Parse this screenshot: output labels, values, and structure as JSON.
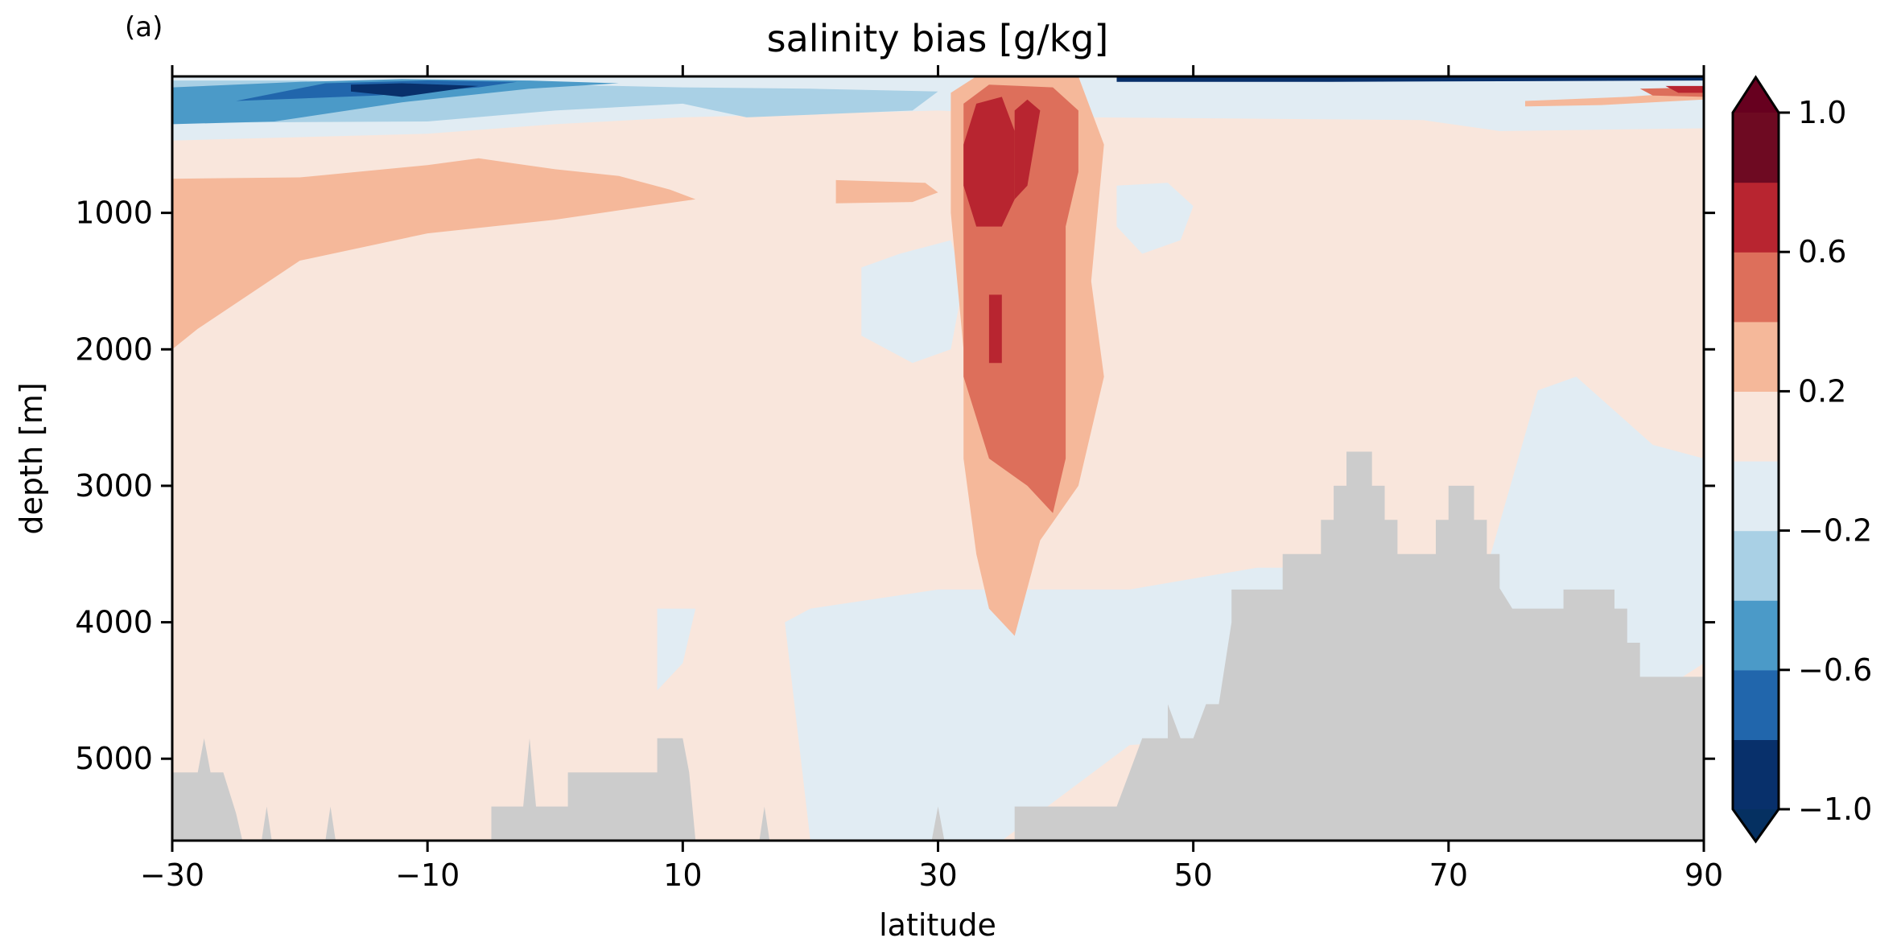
{
  "panel_label": "(a)",
  "chart_data": {
    "type": "heatmap",
    "subtype": "filled-contour",
    "title": "salinity bias [g/kg]",
    "xlabel": "latitude",
    "ylabel": "depth [m]",
    "xlim": [
      -30,
      90
    ],
    "ylim": [
      5600,
      0
    ],
    "y_inverted": true,
    "x_ticks": [
      -30,
      -10,
      10,
      30,
      50,
      70,
      90
    ],
    "x_tick_labels": [
      "−30",
      "−10",
      "10",
      "30",
      "50",
      "70",
      "90"
    ],
    "y_ticks": [
      1000,
      2000,
      3000,
      4000,
      5000
    ],
    "y_tick_labels": [
      "1000",
      "2000",
      "3000",
      "4000",
      "5000"
    ],
    "grid": false,
    "colorbar": {
      "levels": [
        -1.0,
        -0.8,
        -0.6,
        -0.4,
        -0.2,
        0.0,
        0.2,
        0.4,
        0.6,
        0.8,
        1.0
      ],
      "extend": "both",
      "colors": [
        "#053061",
        "#2166ac",
        "#4393c3",
        "#92c5de",
        "#d1e5f0",
        "#fddbc7",
        "#f4a582",
        "#d6604d",
        "#b2182b",
        "#67001f"
      ],
      "band_colors": [
        "#08306b",
        "#2166ac",
        "#4b9ac8",
        "#a9d0e5",
        "#e1ecf3",
        "#f9e6dc",
        "#f5b89a",
        "#dd6f5b",
        "#b82530",
        "#6e0a22"
      ],
      "tick_values": [
        1.0,
        0.6,
        0.2,
        -0.2,
        -0.6,
        -1.0
      ],
      "tick_labels": [
        "1.0",
        "0.6",
        "0.2",
        "−0.2",
        "−0.6",
        "−1.0"
      ]
    },
    "background_value_class": "0.0 to 0.2",
    "land_mask_color": "#cccccc",
    "regions": [
      {
        "value_class": "0.2 to 0.4",
        "points": [
          [
            -30,
            750
          ],
          [
            -20,
            740
          ],
          [
            -10,
            650
          ],
          [
            -6,
            600
          ],
          [
            0,
            680
          ],
          [
            5,
            730
          ],
          [
            9,
            830
          ],
          [
            11,
            900
          ],
          [
            8,
            940
          ],
          [
            0,
            1050
          ],
          [
            -10,
            1150
          ],
          [
            -20,
            1350
          ],
          [
            -28,
            1850
          ],
          [
            -30,
            2000
          ]
        ]
      },
      {
        "value_class": "0.2 to 0.4",
        "points": [
          [
            22,
            760
          ],
          [
            29,
            780
          ],
          [
            30,
            850
          ],
          [
            28,
            920
          ],
          [
            22,
            930
          ],
          [
            22,
            860
          ]
        ]
      },
      {
        "value_class": "-0.2 to 0.0",
        "points": [
          [
            -30,
            0
          ],
          [
            90,
            0
          ],
          [
            90,
            380
          ],
          [
            74,
            400
          ],
          [
            68,
            320
          ],
          [
            42,
            300
          ],
          [
            30,
            250
          ],
          [
            10,
            300
          ],
          [
            0,
            350
          ],
          [
            -10,
            420
          ],
          [
            -30,
            470
          ]
        ]
      },
      {
        "value_class": "-0.4 to -0.2",
        "points": [
          [
            -30,
            30
          ],
          [
            -20,
            30
          ],
          [
            -10,
            50
          ],
          [
            0,
            60
          ],
          [
            10,
            80
          ],
          [
            20,
            90
          ],
          [
            30,
            110
          ],
          [
            28,
            250
          ],
          [
            15,
            300
          ],
          [
            10,
            200
          ],
          [
            0,
            250
          ],
          [
            -10,
            330
          ],
          [
            -30,
            340
          ]
        ]
      },
      {
        "value_class": "-0.6 to -0.4",
        "points": [
          [
            -30,
            80
          ],
          [
            -20,
            40
          ],
          [
            -12,
            20
          ],
          [
            -2,
            30
          ],
          [
            5,
            50
          ],
          [
            -2,
            90
          ],
          [
            -12,
            190
          ],
          [
            -22,
            330
          ],
          [
            -30,
            350
          ]
        ]
      },
      {
        "value_class": "-0.8 to -0.6",
        "points": [
          [
            -25,
            180
          ],
          [
            -18,
            50
          ],
          [
            -10,
            30
          ],
          [
            -3,
            40
          ],
          [
            -6,
            80
          ],
          [
            -14,
            140
          ]
        ]
      },
      {
        "value_class": "-1.0 to -0.8",
        "points": [
          [
            -16,
            60
          ],
          [
            -12,
            50
          ],
          [
            -6,
            70
          ],
          [
            -12,
            150
          ],
          [
            -16,
            110
          ]
        ]
      },
      {
        "value_class": "-0.2 to 0.0",
        "points": [
          [
            24,
            1400
          ],
          [
            27,
            1300
          ],
          [
            31,
            1200
          ],
          [
            32,
            1500
          ],
          [
            31,
            2000
          ],
          [
            28,
            2100
          ],
          [
            24,
            1900
          ]
        ]
      },
      {
        "value_class": "-0.2 to 0.0",
        "points": [
          [
            44,
            800
          ],
          [
            48,
            780
          ],
          [
            50,
            950
          ],
          [
            49,
            1200
          ],
          [
            46,
            1300
          ],
          [
            44,
            1100
          ]
        ]
      },
      {
        "value_class": "-0.2 to 0.0",
        "points": [
          [
            8,
            3900
          ],
          [
            11,
            3900
          ],
          [
            10,
            4300
          ],
          [
            8,
            4500
          ]
        ]
      },
      {
        "value_class": "-0.2 to 0.0",
        "points": [
          [
            18,
            4000
          ],
          [
            20,
            3900
          ],
          [
            30,
            3760
          ],
          [
            45,
            3760
          ],
          [
            55,
            3600
          ],
          [
            70,
            3600
          ],
          [
            80,
            3500
          ],
          [
            88,
            3400
          ],
          [
            90,
            4300
          ],
          [
            85,
            4600
          ],
          [
            60,
            4800
          ],
          [
            45,
            4900
          ],
          [
            35,
            5600
          ],
          [
            20,
            5600
          ]
        ]
      },
      {
        "value_class": "-0.2 to 0.0",
        "points": [
          [
            73,
            3600
          ],
          [
            77,
            2300
          ],
          [
            80,
            2200
          ],
          [
            86,
            2700
          ],
          [
            90,
            2800
          ],
          [
            90,
            4300
          ],
          [
            86,
            4300
          ],
          [
            80,
            3900
          ],
          [
            76,
            3900
          ]
        ]
      },
      {
        "value_class": "0.2 to 0.4",
        "points": [
          [
            31,
            120
          ],
          [
            33,
            0
          ],
          [
            41,
            0
          ],
          [
            43,
            500
          ],
          [
            42,
            1500
          ],
          [
            43,
            2200
          ],
          [
            41,
            3000
          ],
          [
            38,
            3400
          ],
          [
            36,
            4100
          ],
          [
            34,
            3900
          ],
          [
            33,
            3500
          ],
          [
            32,
            2800
          ],
          [
            32,
            2000
          ],
          [
            31,
            1000
          ]
        ]
      },
      {
        "value_class": "0.2 to 0.4",
        "points": [
          [
            76,
            180
          ],
          [
            84,
            150
          ],
          [
            90,
            110
          ],
          [
            90,
            170
          ],
          [
            82,
            210
          ],
          [
            76,
            220
          ]
        ]
      },
      {
        "value_class": "0.4 to 0.6",
        "points": [
          [
            32,
            200
          ],
          [
            34,
            60
          ],
          [
            39,
            80
          ],
          [
            41,
            250
          ],
          [
            41,
            700
          ],
          [
            40,
            1100
          ],
          [
            40,
            1800
          ],
          [
            40,
            2800
          ],
          [
            39,
            3200
          ],
          [
            37,
            3000
          ],
          [
            34,
            2800
          ],
          [
            32,
            2200
          ],
          [
            32,
            1500
          ],
          [
            32,
            600
          ]
        ]
      },
      {
        "value_class": "0.6 to 0.8",
        "points": [
          [
            32,
            500
          ],
          [
            33,
            200
          ],
          [
            35,
            150
          ],
          [
            36,
            400
          ],
          [
            36,
            900
          ],
          [
            35,
            1100
          ],
          [
            33,
            1100
          ],
          [
            32,
            800
          ]
        ]
      },
      {
        "value_class": "0.6 to 0.8",
        "points": [
          [
            34,
            1600
          ],
          [
            35,
            1600
          ],
          [
            35,
            2100
          ],
          [
            34,
            2100
          ]
        ]
      },
      {
        "value_class": "0.6 to 0.8",
        "points": [
          [
            36,
            250
          ],
          [
            37,
            170
          ],
          [
            38,
            250
          ],
          [
            37,
            800
          ],
          [
            36,
            900
          ]
        ]
      },
      {
        "value_class": "0.4 to 0.6",
        "points": [
          [
            85,
            90
          ],
          [
            90,
            80
          ],
          [
            90,
            150
          ],
          [
            86,
            140
          ]
        ]
      },
      {
        "value_class": "0.6 to 0.8",
        "points": [
          [
            87,
            70
          ],
          [
            90,
            70
          ],
          [
            90,
            120
          ],
          [
            88,
            120
          ]
        ]
      },
      {
        "value_class": "-1.0 to -0.8",
        "points": [
          [
            44,
            0
          ],
          [
            90,
            0
          ],
          [
            90,
            30
          ],
          [
            60,
            40
          ],
          [
            44,
            40
          ]
        ]
      }
    ],
    "bathymetry_land": [
      [
        -30,
        5600
      ],
      [
        -30,
        5100
      ],
      [
        -28,
        5100
      ],
      [
        -27.5,
        4850
      ],
      [
        -27,
        5100
      ],
      [
        -26,
        5100
      ],
      [
        -25,
        5400
      ],
      [
        -24.5,
        5600
      ],
      [
        -23,
        5600
      ],
      [
        -22.6,
        5350
      ],
      [
        -22.2,
        5600
      ],
      [
        -18,
        5600
      ],
      [
        -17.6,
        5350
      ],
      [
        -17.2,
        5600
      ],
      [
        -5,
        5600
      ],
      [
        -5,
        5350
      ],
      [
        -2.5,
        5350
      ],
      [
        -2,
        4850
      ],
      [
        -1.5,
        5350
      ],
      [
        1,
        5350
      ],
      [
        1,
        5100
      ],
      [
        8,
        5100
      ],
      [
        8,
        4850
      ],
      [
        10,
        4850
      ],
      [
        10.5,
        5100
      ],
      [
        11,
        5600
      ],
      [
        16,
        5600
      ],
      [
        16.4,
        5350
      ],
      [
        16.8,
        5600
      ],
      [
        29.5,
        5600
      ],
      [
        30,
        5350
      ],
      [
        30.5,
        5600
      ],
      [
        36,
        5600
      ],
      [
        36,
        5350
      ],
      [
        44,
        5350
      ],
      [
        44,
        5350
      ],
      [
        45,
        5100
      ],
      [
        46,
        4850
      ],
      [
        48,
        4850
      ],
      [
        48,
        4600
      ],
      [
        49,
        4850
      ],
      [
        50,
        4850
      ],
      [
        51,
        4600
      ],
      [
        52,
        4600
      ],
      [
        53,
        4000
      ],
      [
        53,
        3760
      ],
      [
        57,
        3760
      ],
      [
        57,
        3500
      ],
      [
        60,
        3500
      ],
      [
        60,
        3250
      ],
      [
        61,
        3250
      ],
      [
        61,
        3000
      ],
      [
        62,
        3000
      ],
      [
        62,
        2750
      ],
      [
        64,
        2750
      ],
      [
        64,
        3000
      ],
      [
        65,
        3000
      ],
      [
        65,
        3250
      ],
      [
        66,
        3250
      ],
      [
        66,
        3500
      ],
      [
        69,
        3500
      ],
      [
        69,
        3250
      ],
      [
        70,
        3250
      ],
      [
        70,
        3000
      ],
      [
        72,
        3000
      ],
      [
        72,
        3250
      ],
      [
        73,
        3250
      ],
      [
        73,
        3500
      ],
      [
        74,
        3500
      ],
      [
        74,
        3750
      ],
      [
        75,
        3900
      ],
      [
        79,
        3900
      ],
      [
        79,
        3760
      ],
      [
        83,
        3760
      ],
      [
        83,
        3900
      ],
      [
        84,
        3900
      ],
      [
        84,
        4150
      ],
      [
        85,
        4150
      ],
      [
        85,
        4400
      ],
      [
        90,
        4400
      ],
      [
        90,
        5600
      ]
    ]
  }
}
